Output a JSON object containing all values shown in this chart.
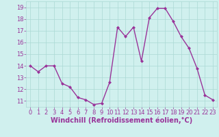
{
  "x": [
    0,
    1,
    2,
    3,
    4,
    5,
    6,
    7,
    8,
    9,
    10,
    11,
    12,
    13,
    14,
    15,
    16,
    17,
    18,
    19,
    20,
    21,
    22,
    23
  ],
  "y": [
    14.0,
    13.5,
    14.0,
    14.0,
    12.5,
    12.2,
    11.3,
    11.1,
    10.7,
    10.8,
    12.6,
    17.3,
    16.5,
    17.3,
    14.4,
    18.1,
    18.9,
    18.9,
    17.8,
    16.5,
    15.5,
    13.8,
    11.5,
    11.1
  ],
  "line_color": "#993399",
  "marker": "D",
  "marker_size": 2,
  "bg_color": "#d0f0ee",
  "grid_color": "#aad8d4",
  "xlabel": "Windchill (Refroidissement éolien,°C)",
  "ylim": [
    10.5,
    19.5
  ],
  "xlim": [
    -0.5,
    23.5
  ],
  "yticks": [
    11,
    12,
    13,
    14,
    15,
    16,
    17,
    18,
    19
  ],
  "xticks": [
    0,
    1,
    2,
    3,
    4,
    5,
    6,
    7,
    8,
    9,
    10,
    11,
    12,
    13,
    14,
    15,
    16,
    17,
    18,
    19,
    20,
    21,
    22,
    23
  ],
  "tick_color": "#993399",
  "label_color": "#993399",
  "font_size": 6,
  "xlabel_font_size": 7,
  "line_width": 1.0
}
